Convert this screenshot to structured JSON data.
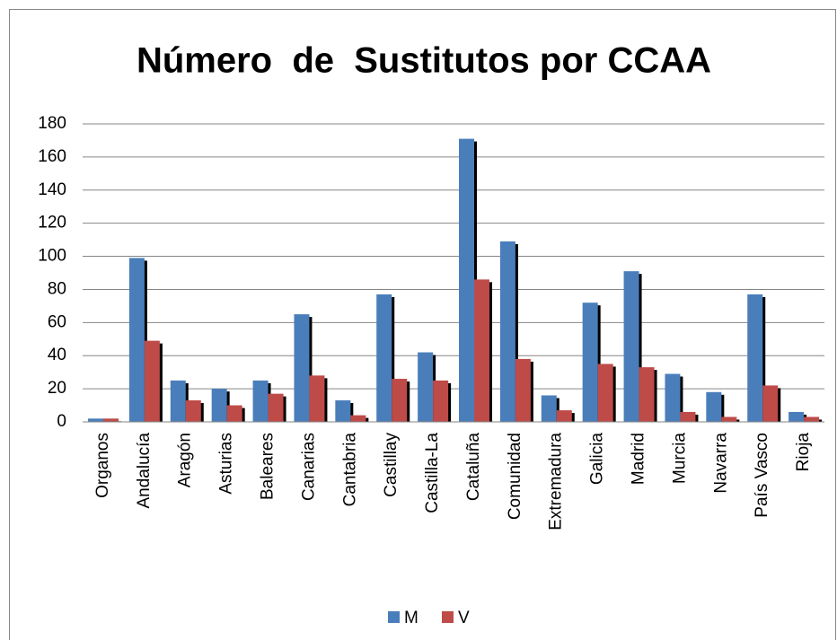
{
  "chart_data": {
    "type": "bar",
    "title": "Número  de  Sustitutos por CCAA",
    "categories": [
      "Organos",
      "Andalucía",
      "Aragón",
      "Asturias",
      "Baleares",
      "Canarias",
      "Cantabria",
      "Castillay",
      "Castilla-La",
      "Cataluña",
      "Comunidad",
      "Extremadura",
      "Galicia",
      "Madrid",
      "Murcia",
      "Navarra",
      "País Vasco",
      "Rioja"
    ],
    "series": [
      {
        "name": "M",
        "color": "#4a7ebb",
        "values": [
          2,
          99,
          25,
          20,
          25,
          65,
          13,
          77,
          42,
          171,
          109,
          16,
          72,
          91,
          29,
          18,
          77,
          6
        ]
      },
      {
        "name": "V",
        "color": "#be4b48",
        "values": [
          2,
          49,
          13,
          10,
          17,
          28,
          4,
          26,
          25,
          86,
          38,
          7,
          35,
          33,
          6,
          3,
          22,
          3
        ]
      }
    ],
    "ylim": [
      0,
      180
    ],
    "yticks": [
      0,
      20,
      40,
      60,
      80,
      100,
      120,
      140,
      160,
      180
    ],
    "grid": true,
    "legend": "bottom"
  }
}
